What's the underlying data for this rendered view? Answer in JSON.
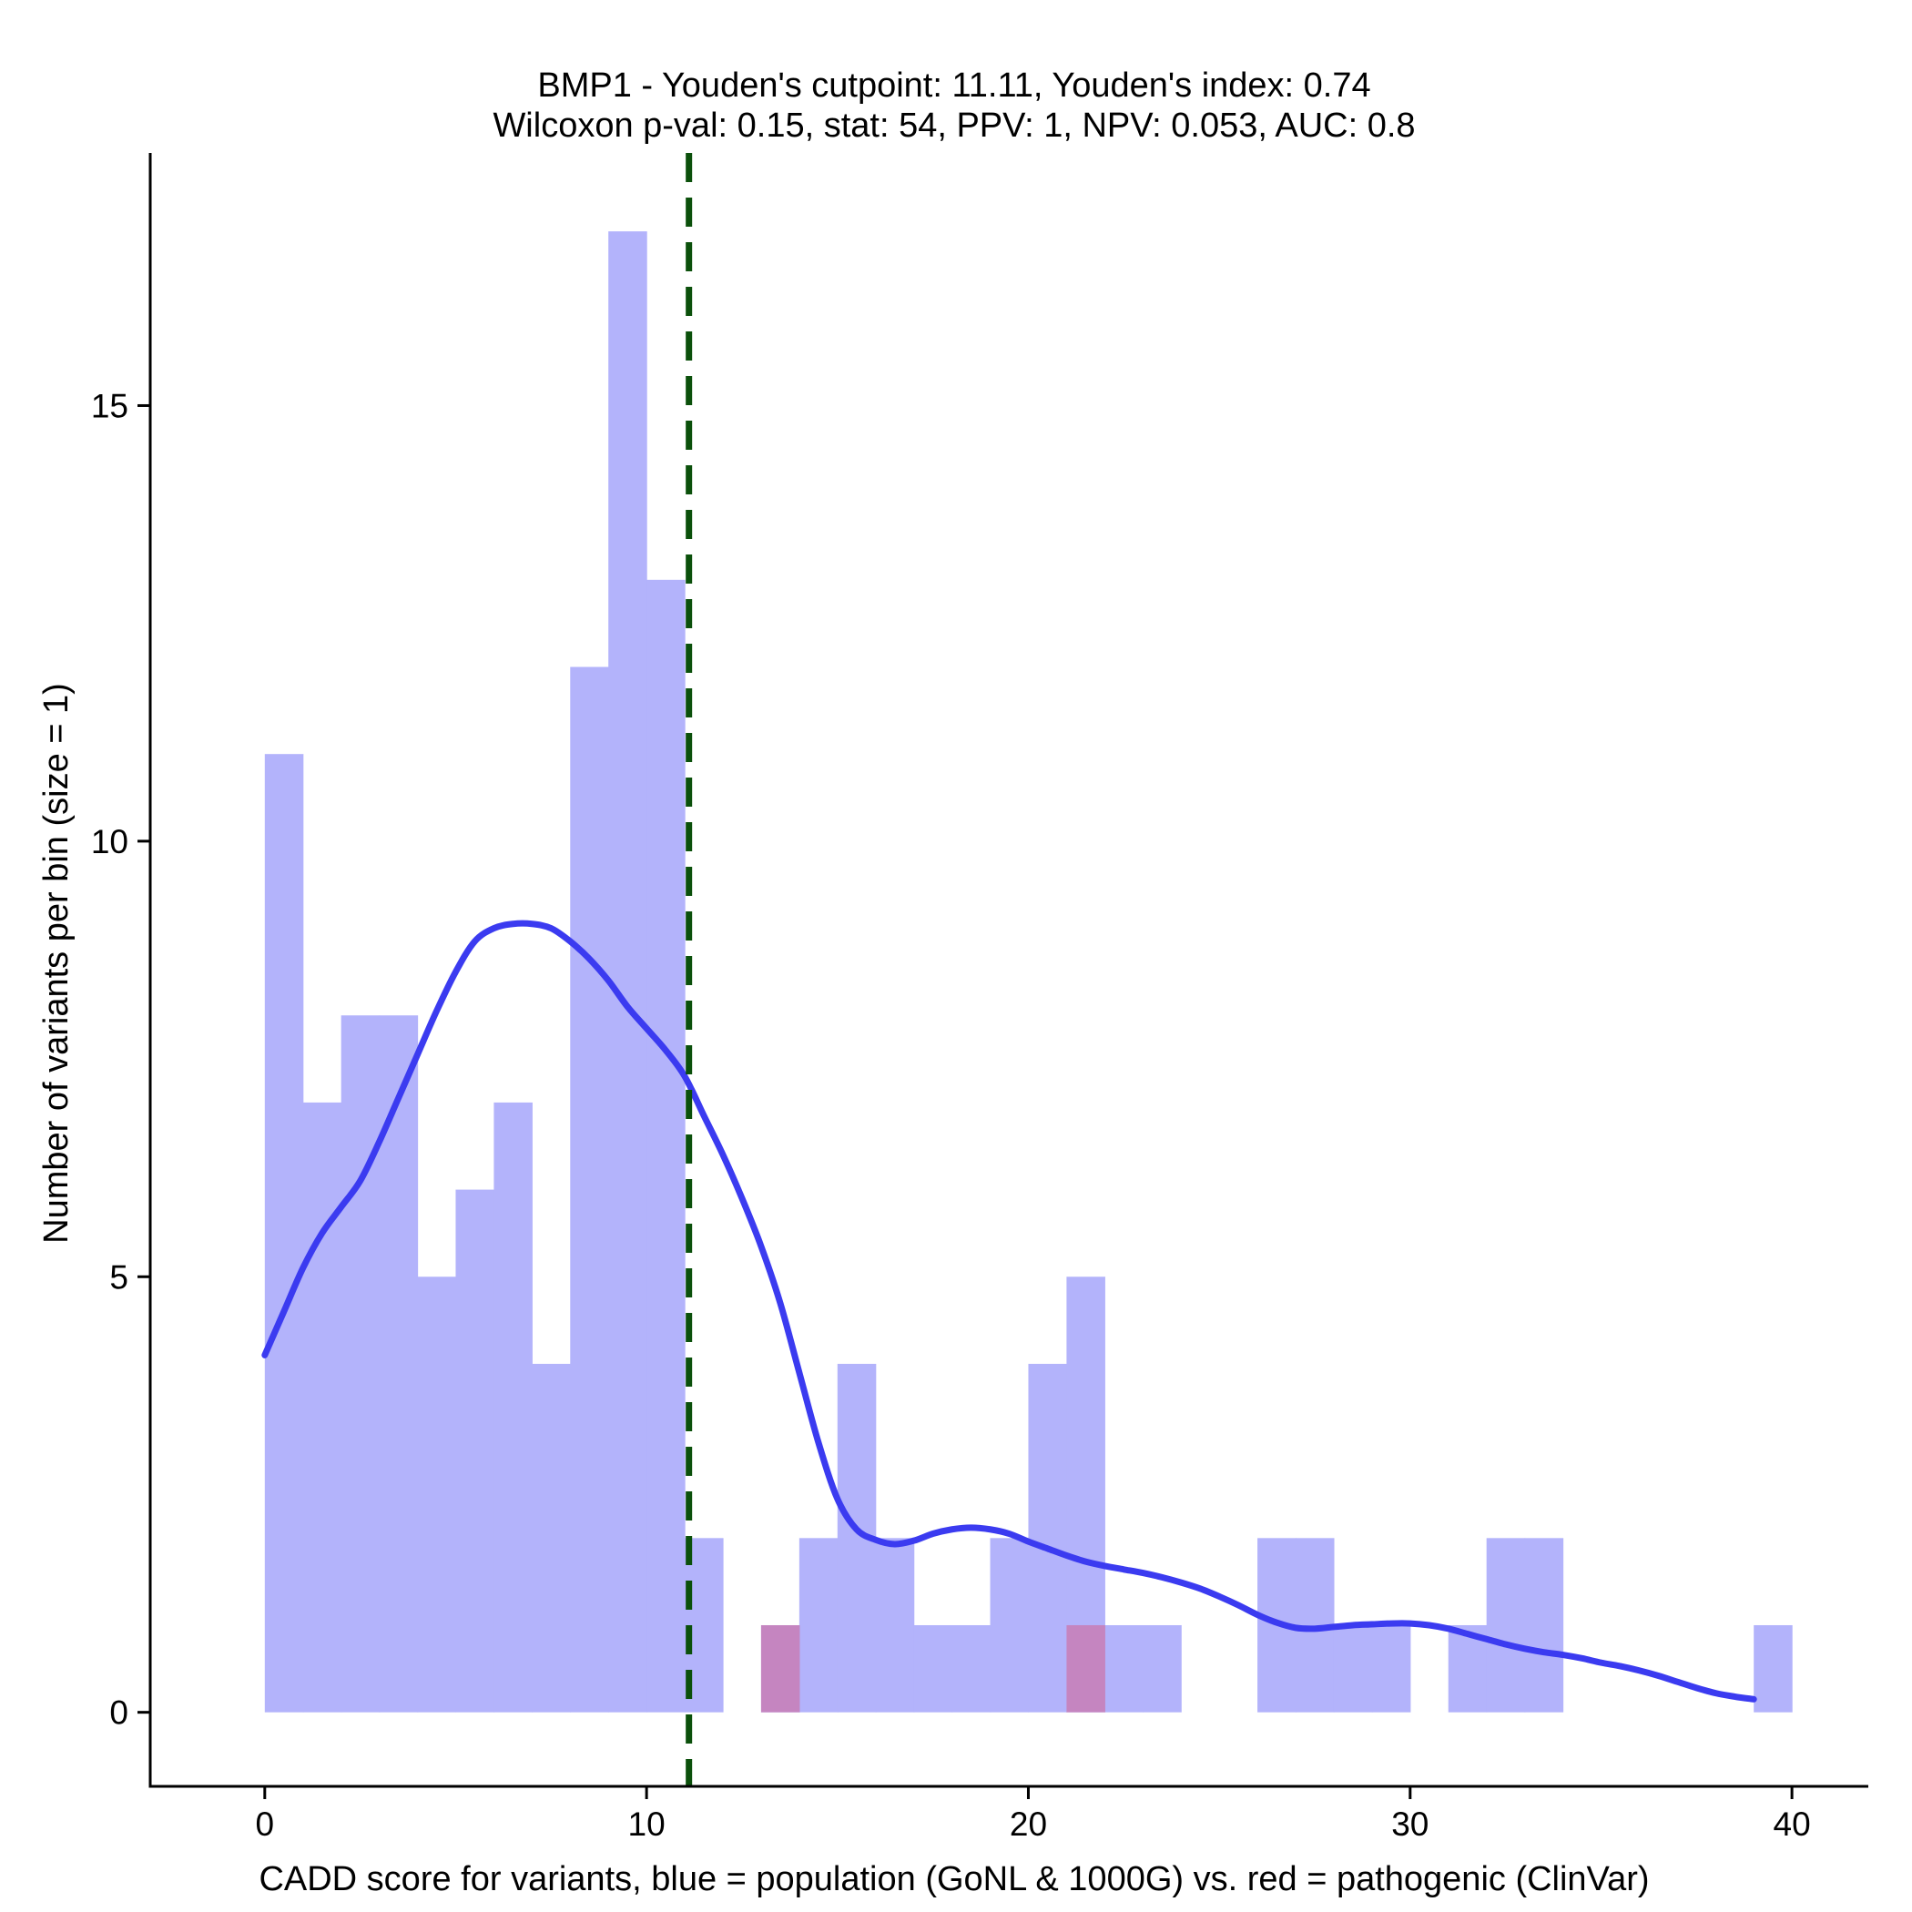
{
  "chart_data": {
    "type": "bar",
    "title_line1": "BMP1 - Youden's cutpoint: 11.11, Youden's index: 0.74",
    "title_line2": "Wilcoxon p-val: 0.15, stat: 54, PPV: 1, NPV: 0.053, AUC: 0.8",
    "xlabel": "CADD score for variants, blue = population (GoNL & 1000G) vs. red = pathogenic (ClinVar)",
    "ylabel": "Number of variants per bin (size = 1)",
    "xlim": [
      -3,
      42
    ],
    "ylim": [
      -0.85,
      17.9
    ],
    "x_ticks": [
      0,
      10,
      20,
      30,
      40
    ],
    "y_ticks": [
      0,
      5,
      10,
      15
    ],
    "bin_width": 1,
    "cutpoint": 11.11,
    "colors": {
      "population": "#b3b3fb",
      "pathogenic": "#c585c0",
      "density": "#3b3bf0",
      "cutpoint": "#0b500b",
      "axis": "#000000"
    },
    "series": [
      {
        "name": "population (GoNL & 1000G)",
        "bins": [
          [
            0,
            11
          ],
          [
            1,
            7
          ],
          [
            2,
            8
          ],
          [
            3,
            8
          ],
          [
            4,
            5
          ],
          [
            5,
            6
          ],
          [
            6,
            7
          ],
          [
            7,
            4
          ],
          [
            8,
            12
          ],
          [
            9,
            17
          ],
          [
            10,
            13
          ],
          [
            11,
            2
          ],
          [
            13,
            1
          ],
          [
            14,
            2
          ],
          [
            15,
            4
          ],
          [
            16,
            2
          ],
          [
            17,
            1
          ],
          [
            18,
            1
          ],
          [
            19,
            2
          ],
          [
            20,
            4
          ],
          [
            21,
            5
          ],
          [
            22,
            1
          ],
          [
            23,
            1
          ],
          [
            26,
            2
          ],
          [
            27,
            2
          ],
          [
            28,
            1
          ],
          [
            29,
            1
          ],
          [
            31,
            1
          ],
          [
            32,
            2
          ],
          [
            33,
            2
          ],
          [
            39,
            1
          ]
        ]
      },
      {
        "name": "pathogenic (ClinVar)",
        "bins": [
          [
            13,
            1
          ],
          [
            21,
            1
          ]
        ]
      }
    ],
    "density_curve": {
      "name": "population density (scaled)",
      "points": [
        [
          0,
          4.1
        ],
        [
          0.5,
          4.6
        ],
        [
          1,
          5.1
        ],
        [
          1.5,
          5.5
        ],
        [
          2,
          5.8
        ],
        [
          2.5,
          6.1
        ],
        [
          3,
          6.55
        ],
        [
          3.5,
          7.05
        ],
        [
          4,
          7.55
        ],
        [
          4.5,
          8.05
        ],
        [
          5,
          8.5
        ],
        [
          5.5,
          8.85
        ],
        [
          6,
          9.0
        ],
        [
          6.5,
          9.05
        ],
        [
          7,
          9.05
        ],
        [
          7.5,
          9.0
        ],
        [
          8,
          8.85
        ],
        [
          8.5,
          8.65
        ],
        [
          9,
          8.4
        ],
        [
          9.5,
          8.1
        ],
        [
          10,
          7.85
        ],
        [
          10.5,
          7.6
        ],
        [
          11,
          7.3
        ],
        [
          11.5,
          6.85
        ],
        [
          12,
          6.4
        ],
        [
          12.5,
          5.9
        ],
        [
          13,
          5.35
        ],
        [
          13.5,
          4.7
        ],
        [
          14,
          3.9
        ],
        [
          14.5,
          3.1
        ],
        [
          15,
          2.45
        ],
        [
          15.5,
          2.1
        ],
        [
          16,
          1.98
        ],
        [
          16.5,
          1.93
        ],
        [
          17,
          1.97
        ],
        [
          17.5,
          2.05
        ],
        [
          18,
          2.1
        ],
        [
          18.5,
          2.12
        ],
        [
          19,
          2.1
        ],
        [
          19.5,
          2.05
        ],
        [
          20,
          1.96
        ],
        [
          20.5,
          1.88
        ],
        [
          21,
          1.8
        ],
        [
          21.5,
          1.73
        ],
        [
          22,
          1.68
        ],
        [
          22.5,
          1.64
        ],
        [
          23,
          1.6
        ],
        [
          23.5,
          1.55
        ],
        [
          24,
          1.49
        ],
        [
          24.5,
          1.42
        ],
        [
          25,
          1.33
        ],
        [
          25.5,
          1.23
        ],
        [
          26,
          1.12
        ],
        [
          26.5,
          1.03
        ],
        [
          27,
          0.97
        ],
        [
          27.5,
          0.96
        ],
        [
          28,
          0.98
        ],
        [
          28.5,
          1.0
        ],
        [
          29,
          1.01
        ],
        [
          29.5,
          1.02
        ],
        [
          30,
          1.02
        ],
        [
          30.5,
          1.0
        ],
        [
          31,
          0.96
        ],
        [
          31.5,
          0.9
        ],
        [
          32,
          0.84
        ],
        [
          32.5,
          0.78
        ],
        [
          33,
          0.73
        ],
        [
          33.5,
          0.69
        ],
        [
          34,
          0.66
        ],
        [
          34.5,
          0.62
        ],
        [
          35,
          0.57
        ],
        [
          35.5,
          0.53
        ],
        [
          36,
          0.48
        ],
        [
          36.5,
          0.42
        ],
        [
          37,
          0.35
        ],
        [
          37.5,
          0.28
        ],
        [
          38,
          0.22
        ],
        [
          38.5,
          0.18
        ],
        [
          39,
          0.15
        ]
      ]
    }
  }
}
